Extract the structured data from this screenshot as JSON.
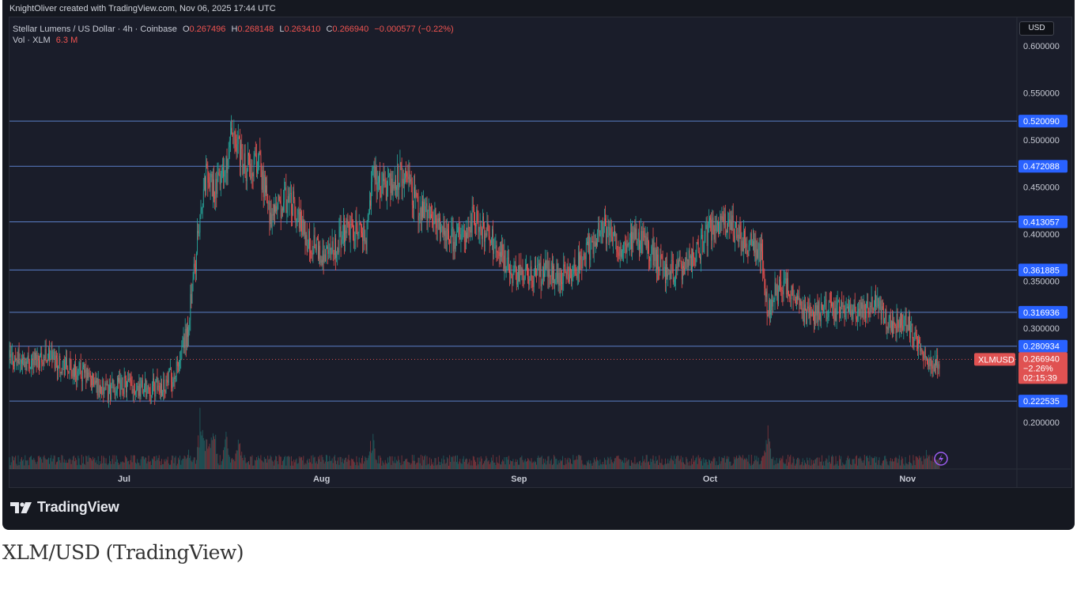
{
  "credit": "KnightOliver created with TradingView.com, Nov 06, 2025 17:44 UTC",
  "legend": {
    "symbol": "Stellar Lumens / US Dollar · 4h · Coinbase",
    "o_label": "O",
    "o_value": "0.267496",
    "h_label": "H",
    "h_value": "0.268148",
    "l_label": "L",
    "l_value": "0.263410",
    "c_label": "C",
    "c_value": "0.266940",
    "change": "−0.000577 (−0.22%)",
    "vol_label": "Vol · XLM",
    "vol_value": "6.3 M"
  },
  "currency_button": "USD",
  "branding": "TradingView",
  "caption": "XLM/USD (TradingView)",
  "colors": {
    "up": "#26a69a",
    "down": "#ef5350",
    "level_line": "#5b7fc7",
    "tag_bg": "#2962ff",
    "price_tag_bg": "#e05252",
    "background": "#1a1d2a"
  },
  "chart_data": {
    "type": "candlestick",
    "symbol": "XLMUSD",
    "interval": "4h",
    "exchange": "Coinbase",
    "y_axis_ticks": [
      "0.600000",
      "0.550000",
      "0.500000",
      "0.450000",
      "0.400000",
      "0.350000",
      "0.300000",
      "0.200000"
    ],
    "y_range": [
      0.15,
      0.62
    ],
    "x_axis_labels": [
      "Jul",
      "Aug",
      "Sep",
      "Oct",
      "Nov"
    ],
    "horizontal_levels": [
      {
        "value": 0.52009,
        "label": "0.520090"
      },
      {
        "value": 0.472088,
        "label": "0.472088"
      },
      {
        "value": 0.413057,
        "label": "0.413057"
      },
      {
        "value": 0.361885,
        "label": "0.361885"
      },
      {
        "value": 0.316936,
        "label": "0.316936"
      },
      {
        "value": 0.280934,
        "label": "0.280934"
      },
      {
        "value": 0.222535,
        "label": "0.222535"
      }
    ],
    "current_price": {
      "symbol_label": "XLMUSD",
      "value": 0.26694,
      "label": "0.266940",
      "change": "−2.26%",
      "countdown": "02:15:39"
    },
    "price_path": [
      {
        "date": "2025-06-13",
        "close": 0.268
      },
      {
        "date": "2025-06-16",
        "close": 0.265
      },
      {
        "date": "2025-06-19",
        "close": 0.272
      },
      {
        "date": "2025-06-22",
        "close": 0.258
      },
      {
        "date": "2025-06-25",
        "close": 0.25
      },
      {
        "date": "2025-06-28",
        "close": 0.232
      },
      {
        "date": "2025-07-01",
        "close": 0.24
      },
      {
        "date": "2025-07-04",
        "close": 0.236
      },
      {
        "date": "2025-07-07",
        "close": 0.239
      },
      {
        "date": "2025-07-09",
        "close": 0.25
      },
      {
        "date": "2025-07-10",
        "close": 0.27
      },
      {
        "date": "2025-07-11",
        "close": 0.3
      },
      {
        "date": "2025-07-12",
        "close": 0.36
      },
      {
        "date": "2025-07-13",
        "close": 0.42
      },
      {
        "date": "2025-07-14",
        "close": 0.47
      },
      {
        "date": "2025-07-15",
        "close": 0.45
      },
      {
        "date": "2025-07-17",
        "close": 0.47
      },
      {
        "date": "2025-07-18",
        "close": 0.505
      },
      {
        "date": "2025-07-20",
        "close": 0.47
      },
      {
        "date": "2025-07-22",
        "close": 0.48
      },
      {
        "date": "2025-07-24",
        "close": 0.42
      },
      {
        "date": "2025-07-27",
        "close": 0.44
      },
      {
        "date": "2025-07-30",
        "close": 0.39
      },
      {
        "date": "2025-08-02",
        "close": 0.372
      },
      {
        "date": "2025-08-05",
        "close": 0.41
      },
      {
        "date": "2025-08-08",
        "close": 0.395
      },
      {
        "date": "2025-08-09",
        "close": 0.46
      },
      {
        "date": "2025-08-11",
        "close": 0.45
      },
      {
        "date": "2025-08-14",
        "close": 0.465
      },
      {
        "date": "2025-08-16",
        "close": 0.43
      },
      {
        "date": "2025-08-19",
        "close": 0.415
      },
      {
        "date": "2025-08-22",
        "close": 0.39
      },
      {
        "date": "2025-08-25",
        "close": 0.42
      },
      {
        "date": "2025-08-28",
        "close": 0.39
      },
      {
        "date": "2025-08-31",
        "close": 0.36
      },
      {
        "date": "2025-09-03",
        "close": 0.355
      },
      {
        "date": "2025-09-06",
        "close": 0.36
      },
      {
        "date": "2025-09-09",
        "close": 0.355
      },
      {
        "date": "2025-09-12",
        "close": 0.385
      },
      {
        "date": "2025-09-14",
        "close": 0.408
      },
      {
        "date": "2025-09-17",
        "close": 0.385
      },
      {
        "date": "2025-09-19",
        "close": 0.4
      },
      {
        "date": "2025-09-22",
        "close": 0.38
      },
      {
        "date": "2025-09-24",
        "close": 0.36
      },
      {
        "date": "2025-09-27",
        "close": 0.365
      },
      {
        "date": "2025-09-29",
        "close": 0.38
      },
      {
        "date": "2025-10-01",
        "close": 0.405
      },
      {
        "date": "2025-10-04",
        "close": 0.41
      },
      {
        "date": "2025-10-06",
        "close": 0.395
      },
      {
        "date": "2025-10-09",
        "close": 0.38
      },
      {
        "date": "2025-10-10",
        "close": 0.32
      },
      {
        "date": "2025-10-11",
        "close": 0.335
      },
      {
        "date": "2025-10-13",
        "close": 0.345
      },
      {
        "date": "2025-10-16",
        "close": 0.315
      },
      {
        "date": "2025-10-19",
        "close": 0.318
      },
      {
        "date": "2025-10-22",
        "close": 0.322
      },
      {
        "date": "2025-10-24",
        "close": 0.315
      },
      {
        "date": "2025-10-27",
        "close": 0.325
      },
      {
        "date": "2025-10-29",
        "close": 0.305
      },
      {
        "date": "2025-11-01",
        "close": 0.305
      },
      {
        "date": "2025-11-03",
        "close": 0.275
      },
      {
        "date": "2025-11-04",
        "close": 0.262
      },
      {
        "date": "2025-11-06",
        "close": 0.267
      }
    ],
    "volume_spikes": [
      {
        "date": "2025-07-11",
        "relative": 0.35
      },
      {
        "date": "2025-07-13",
        "relative": 0.95
      },
      {
        "date": "2025-07-14",
        "relative": 0.75
      },
      {
        "date": "2025-07-15",
        "relative": 0.8
      },
      {
        "date": "2025-07-17",
        "relative": 0.55
      },
      {
        "date": "2025-07-19",
        "relative": 0.5
      },
      {
        "date": "2025-08-09",
        "relative": 0.6
      },
      {
        "date": "2025-10-10",
        "relative": 0.75
      },
      {
        "date": "2025-11-04",
        "relative": 0.3
      }
    ]
  }
}
